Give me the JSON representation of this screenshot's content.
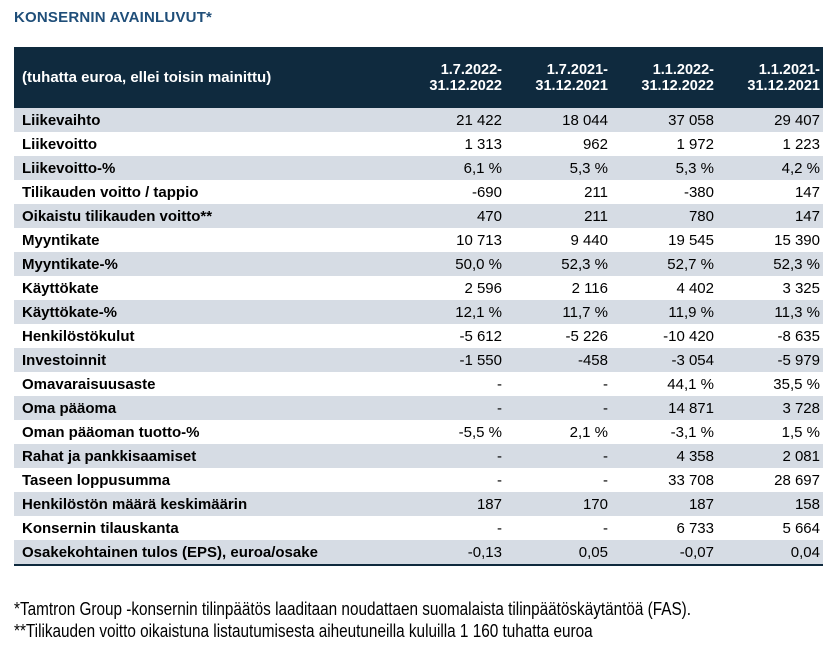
{
  "page": {
    "title": "KONSERNIN AVAINLUVUT*"
  },
  "table": {
    "unit_label": "(tuhatta euroa, ellei toisin mainittu)",
    "columns": [
      "1.7.2022-\n31.12.2022",
      "1.7.2021-\n31.12.2021",
      "1.1.2022-\n31.12.2022",
      "1.1.2021-\n31.12.2021"
    ],
    "rows": [
      {
        "label": "Liikevaihto",
        "values": [
          "21 422",
          "18 044",
          "37 058",
          "29 407"
        ]
      },
      {
        "label": "Liikevoitto",
        "values": [
          "1 313",
          "962",
          "1 972",
          "1 223"
        ]
      },
      {
        "label": "Liikevoitto-%",
        "values": [
          "6,1 %",
          "5,3 %",
          "5,3 %",
          "4,2 %"
        ]
      },
      {
        "label": "Tilikauden voitto / tappio",
        "values": [
          "-690",
          "211",
          "-380",
          "147"
        ]
      },
      {
        "label": "Oikaistu tilikauden voitto**",
        "values": [
          "470",
          "211",
          "780",
          "147"
        ]
      },
      {
        "label": "Myyntikate",
        "values": [
          "10 713",
          "9 440",
          "19 545",
          "15 390"
        ]
      },
      {
        "label": "Myyntikate-%",
        "values": [
          "50,0 %",
          "52,3 %",
          "52,7 %",
          "52,3 %"
        ]
      },
      {
        "label": "Käyttökate",
        "values": [
          "2 596",
          "2 116",
          "4 402",
          "3 325"
        ]
      },
      {
        "label": "Käyttökate-%",
        "values": [
          "12,1 %",
          "11,7 %",
          "11,9 %",
          "11,3 %"
        ]
      },
      {
        "label": "Henkilöstökulut",
        "values": [
          "-5 612",
          "-5 226",
          "-10 420",
          "-8 635"
        ]
      },
      {
        "label": "Investoinnit",
        "values": [
          "-1 550",
          "-458",
          "-3 054",
          "-5 979"
        ]
      },
      {
        "label": "Omavaraisuusaste",
        "values": [
          "-",
          "-",
          "44,1 %",
          "35,5 %"
        ]
      },
      {
        "label": "Oma pääoma",
        "values": [
          "-",
          "-",
          "14 871",
          "3 728"
        ]
      },
      {
        "label": "Oman pääoman tuotto-%",
        "values": [
          "-5,5 %",
          "2,1 %",
          "-3,1 %",
          "1,5 %"
        ]
      },
      {
        "label": "Rahat ja pankkisaamiset",
        "values": [
          "-",
          "-",
          "4 358",
          "2 081"
        ]
      },
      {
        "label": "Taseen loppusumma",
        "values": [
          "-",
          "-",
          "33 708",
          "28 697"
        ]
      },
      {
        "label": "Henkilöstön määrä keskimäärin",
        "values": [
          "187",
          "170",
          "187",
          "158"
        ]
      },
      {
        "label": "Konsernin tilauskanta",
        "values": [
          "-",
          "-",
          "6 733",
          "5 664"
        ]
      },
      {
        "label": "Osakekohtainen tulos (EPS), euroa/osake",
        "values": [
          "-0,13",
          "0,05",
          "-0,07",
          "0,04"
        ]
      }
    ]
  },
  "footnotes": [
    "*Tamtron Group -konsernin tilinpäätös laaditaan noudattaen suomalaista tilinpäätöskäytäntöä (FAS).",
    "**Tilikauden voitto oikaistuna listautumisesta aiheutuneilla kuluilla 1 160 tuhatta euroa"
  ],
  "colors": {
    "header_bg": "#0F2A3E",
    "stripe": "#D6DCE4",
    "title": "#1F4E79",
    "table_border": "#0F2A3E"
  }
}
